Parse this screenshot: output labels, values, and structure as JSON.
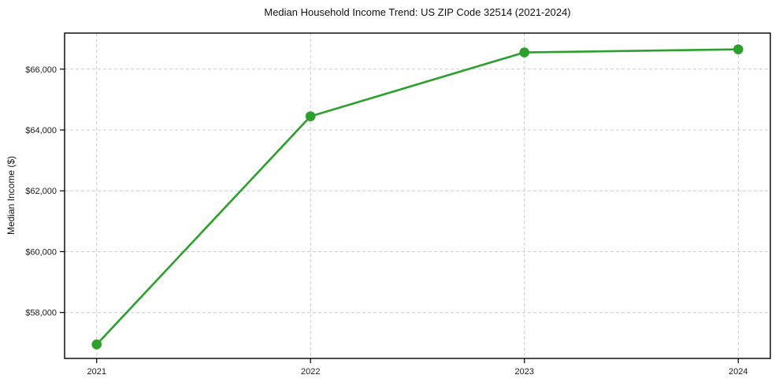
{
  "chart_data": {
    "type": "line",
    "title": "Median Household Income Trend: US ZIP Code 32514 (2021-2024)",
    "xlabel": "",
    "ylabel": "Median Income ($)",
    "series": [
      {
        "name": "Median Household Income",
        "x": [
          2021,
          2022,
          2023,
          2024
        ],
        "values": [
          56950,
          64450,
          66550,
          66650
        ]
      }
    ],
    "xticks": [
      2021,
      2022,
      2023,
      2024
    ],
    "xtick_labels": [
      "2021",
      "2022",
      "2023",
      "2024"
    ],
    "yticks": [
      58000,
      60000,
      62000,
      64000,
      66000
    ],
    "ytick_labels": [
      "$58,000",
      "$60,000",
      "$62,000",
      "$64,000",
      "$66,000"
    ],
    "xlim": [
      2020.85,
      2024.15
    ],
    "ylim": [
      56490,
      67185
    ],
    "grid": true,
    "grid_style": "dashed",
    "legend_position": "none",
    "colors": {
      "line": "#2ca02c",
      "marker": "#2ca02c",
      "grid": "#cccccc",
      "spine": "#000000",
      "background": "#ffffff",
      "text": "#1a1a1a"
    }
  }
}
